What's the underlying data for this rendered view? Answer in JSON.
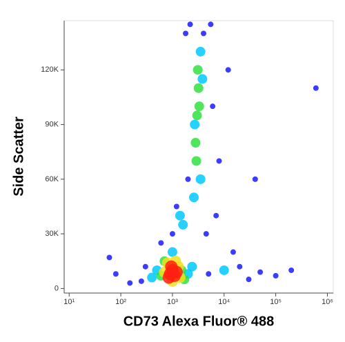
{
  "chart_data": {
    "type": "scatter",
    "x_label": "CD73 Alexa Fluor® 488",
    "y_label": "Side Scatter",
    "x_scale": "log",
    "xlim": [
      8,
      1300000
    ],
    "ylim": [
      -2500,
      147000
    ],
    "xticks": [
      {
        "value": 10,
        "label": "10¹"
      },
      {
        "value": 100,
        "label": "10²"
      },
      {
        "value": 1000,
        "label": "10³"
      },
      {
        "value": 10000,
        "label": "10⁴"
      },
      {
        "value": 100000,
        "label": "10⁵"
      },
      {
        "value": 1000000,
        "label": "10⁶"
      }
    ],
    "yticks": [
      0,
      {
        "value": 30000,
        "label": "30K"
      },
      {
        "value": 60000,
        "label": "60K"
      },
      {
        "value": 90000,
        "label": "90K"
      },
      {
        "value": 120000,
        "label": "120K"
      }
    ],
    "series": [
      {
        "color": "#1a1aff",
        "x": [
          300,
          250,
          5000,
          20000,
          50000,
          100000,
          200000,
          30000,
          4000,
          2200,
          6000,
          8000,
          2000,
          1200,
          1000,
          4500,
          150,
          80,
          600,
          7000,
          15000,
          40000,
          600000,
          60,
          12000,
          1800,
          5500
        ],
        "y": [
          12000,
          4000,
          8000,
          12000,
          9000,
          7000,
          10000,
          5000,
          140000,
          145000,
          100000,
          70000,
          60000,
          45000,
          30000,
          30000,
          3000,
          8000,
          25000,
          40000,
          20000,
          60000,
          110000,
          17000,
          120000,
          140000,
          145000
        ]
      },
      {
        "color": "#00c8ff",
        "x": [
          500,
          2000,
          1000,
          400,
          3500,
          2600,
          3500,
          2700,
          3800,
          1600,
          1400,
          2400,
          10000
        ],
        "y": [
          10000,
          8000,
          20000,
          6000,
          60000,
          50000,
          130000,
          90000,
          115000,
          35000,
          40000,
          12000,
          10000
        ]
      },
      {
        "color": "#30e040",
        "x": [
          600,
          1500,
          700,
          1700,
          3000,
          3200,
          2800,
          3100,
          2900,
          3300
        ],
        "y": [
          7000,
          10000,
          15000,
          5000,
          95000,
          110000,
          80000,
          120000,
          70000,
          100000
        ]
      },
      {
        "color": "#f0e020",
        "x": [
          700,
          1300,
          1000,
          800,
          1400,
          1150
        ],
        "y": [
          9000,
          12000,
          4000,
          14000,
          6000,
          15000
        ]
      },
      {
        "color": "#ff2010",
        "x": [
          900,
          1000,
          1100,
          950,
          1200,
          850
        ],
        "y": [
          8000,
          10000,
          7000,
          12000,
          9000,
          6000
        ]
      }
    ]
  }
}
